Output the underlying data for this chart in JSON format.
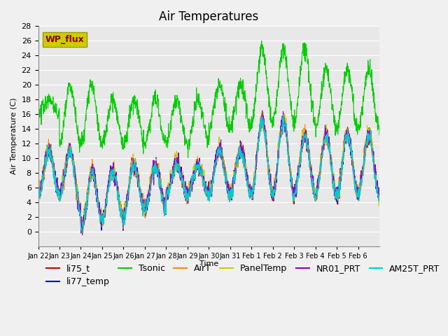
{
  "title": "Air Temperatures",
  "ylabel": "Air Temperature (C)",
  "xlabel": "Time",
  "ylim": [
    -2,
    28
  ],
  "yticks": [
    0,
    2,
    4,
    6,
    8,
    10,
    12,
    14,
    16,
    18,
    20,
    22,
    24,
    26,
    28
  ],
  "date_labels": [
    "Jan 22",
    "Jan 23",
    "Jan 24",
    "Jan 25",
    "Jan 26",
    "Jan 27",
    "Jan 28",
    "Jan 29",
    "Jan 30",
    "Jan 31",
    "Feb 1",
    "Feb 2",
    "Feb 3",
    "Feb 4",
    "Feb 5",
    "Feb 6"
  ],
  "series_colors": {
    "li75_t": "#cc0000",
    "li77_temp": "#0000cc",
    "Tsonic": "#00cc00",
    "AirT": "#ff8800",
    "PanelTemp": "#cccc00",
    "NR01_PRT": "#8800cc",
    "AM25T_PRT": "#00cccc"
  },
  "wp_flux_box_color": "#cccc00",
  "wp_flux_text_color": "#8b0000",
  "background_color": "#e8e8e8",
  "grid_color": "#ffffff",
  "title_fontsize": 12,
  "axis_fontsize": 9,
  "legend_fontsize": 9
}
